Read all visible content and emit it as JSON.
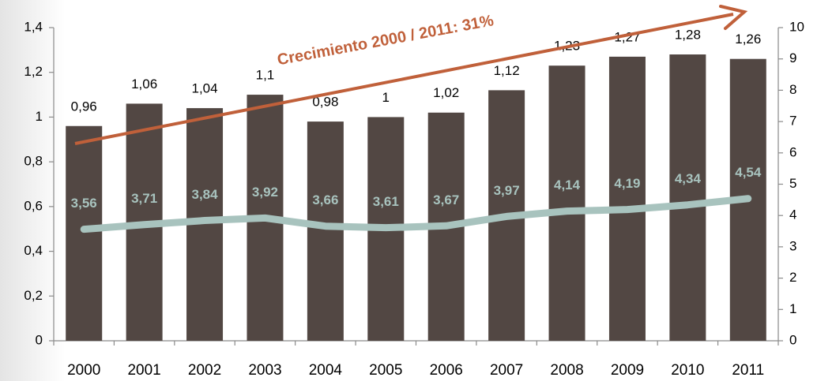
{
  "chart_data": {
    "type": "bar_line",
    "annotation": "Crecimiento 2000 / 2011: 31%",
    "categories": [
      "2000",
      "2001",
      "2002",
      "2003",
      "2004",
      "2005",
      "2006",
      "2007",
      "2008",
      "2009",
      "2010",
      "2011"
    ],
    "series": [
      {
        "type": "bar",
        "color": "#524743",
        "values": [
          0.96,
          1.06,
          1.04,
          1.1,
          0.98,
          1,
          1.02,
          1.12,
          1.23,
          1.27,
          1.28,
          1.26
        ],
        "value_labels": [
          "0,96",
          "1,06",
          "1,04",
          "1,1",
          "0,98",
          "1",
          "1,02",
          "1,12",
          "1,23",
          "1,27",
          "1,28",
          "1,26"
        ]
      },
      {
        "type": "line",
        "axis": "y2",
        "color": "#a8c3be",
        "values": [
          3.56,
          3.71,
          3.84,
          3.92,
          3.66,
          3.61,
          3.67,
          3.97,
          4.14,
          4.19,
          4.34,
          4.54
        ],
        "value_labels": [
          "3,56",
          "3,71",
          "3,84",
          "3,92",
          "3,66",
          "3,61",
          "3,67",
          "3,97",
          "4,14",
          "4,19",
          "4,34",
          "4,54"
        ]
      }
    ],
    "ylim": [
      0,
      1.4
    ],
    "yticks": [
      0,
      {
        "value": 0.2,
        "label": "0,2"
      },
      {
        "value": 0.4,
        "label": "0,4"
      },
      {
        "value": 0.6,
        "label": "0,6"
      },
      {
        "value": 0.8,
        "label": "0,8"
      },
      1,
      {
        "value": 1.2,
        "label": "1,2"
      },
      {
        "value": 1.4,
        "label": "1,4"
      }
    ],
    "y2lim": [
      0,
      10
    ],
    "y2ticks": [
      0,
      1,
      2,
      3,
      4,
      5,
      6,
      7,
      8,
      9,
      10
    ],
    "grid": false
  }
}
